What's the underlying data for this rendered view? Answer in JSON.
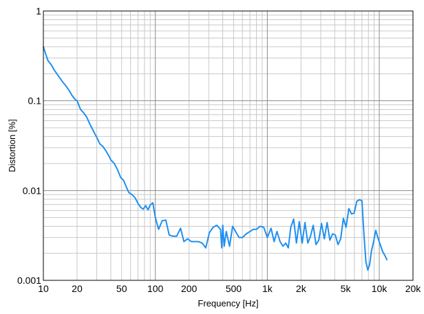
{
  "chart_data": {
    "type": "line",
    "title": "",
    "xlabel": "Frequency [Hz]",
    "ylabel": "Distortion [%]",
    "x_scale": "log",
    "y_scale": "log",
    "xlim": [
      10,
      20000
    ],
    "ylim": [
      0.001,
      1
    ],
    "x_ticks": [
      {
        "value": 10,
        "label": "10"
      },
      {
        "value": 20,
        "label": "20"
      },
      {
        "value": 50,
        "label": "50"
      },
      {
        "value": 100,
        "label": "100"
      },
      {
        "value": 200,
        "label": "200"
      },
      {
        "value": 500,
        "label": "500"
      },
      {
        "value": 1000,
        "label": "1k"
      },
      {
        "value": 2000,
        "label": "2k"
      },
      {
        "value": 5000,
        "label": "5k"
      },
      {
        "value": 10000,
        "label": "10k"
      },
      {
        "value": 20000,
        "label": "20k"
      }
    ],
    "y_ticks": [
      {
        "value": 1,
        "label": "1"
      },
      {
        "value": 0.1,
        "label": "0.1"
      },
      {
        "value": 0.01,
        "label": "0.01"
      },
      {
        "value": 0.001,
        "label": "0.001"
      }
    ],
    "grid": true,
    "legend": "none",
    "colors": {
      "line": "#1e8ff0",
      "grid": "#c8c8c8",
      "major_grid": "#8c8c8c",
      "frame": "#000000"
    },
    "series": [
      {
        "x": [
          10,
          10.5,
          11,
          11.8,
          12.5,
          13.2,
          14,
          15,
          16,
          17,
          18,
          19,
          20,
          21.5,
          23,
          24.5,
          26,
          28,
          30,
          32,
          34,
          36,
          38,
          40,
          43,
          46,
          49,
          52,
          55,
          58,
          62,
          66,
          70,
          74,
          78,
          82,
          86,
          90,
          95,
          100,
          107,
          115,
          124,
          133,
          143,
          155,
          168,
          180,
          194,
          210,
          226,
          243,
          262,
          282,
          304,
          328,
          354,
          382,
          392,
          400,
          412,
          430,
          460,
          490,
          520,
          560,
          600,
          650,
          700,
          750,
          800,
          860,
          930,
          1000,
          1080,
          1150,
          1220,
          1300,
          1380,
          1460,
          1540,
          1620,
          1720,
          1820,
          1930,
          2050,
          2170,
          2300,
          2430,
          2570,
          2720,
          2880,
          3050,
          3230,
          3420,
          3620,
          3830,
          4050,
          4280,
          4520,
          4780,
          5050,
          5350,
          5650,
          5960,
          6300,
          6650,
          7000,
          7300,
          7600,
          7900,
          8200,
          8500,
          8900,
          9300,
          9700,
          10200,
          10700,
          11200,
          11700
        ],
        "y": [
          0.4,
          0.33,
          0.28,
          0.25,
          0.22,
          0.2,
          0.18,
          0.16,
          0.145,
          0.13,
          0.115,
          0.105,
          0.1,
          0.08,
          0.073,
          0.065,
          0.055,
          0.046,
          0.039,
          0.033,
          0.031,
          0.028,
          0.025,
          0.022,
          0.02,
          0.017,
          0.014,
          0.013,
          0.011,
          0.0095,
          0.009,
          0.0083,
          0.0072,
          0.0065,
          0.0062,
          0.0068,
          0.0061,
          0.0069,
          0.0073,
          0.005,
          0.0037,
          0.0046,
          0.0047,
          0.0032,
          0.0031,
          0.0031,
          0.0038,
          0.0027,
          0.0029,
          0.0027,
          0.0027,
          0.0027,
          0.0026,
          0.0023,
          0.0034,
          0.0039,
          0.0041,
          0.0037,
          0.0023,
          0.0041,
          0.0024,
          0.0035,
          0.0024,
          0.004,
          0.0035,
          0.003,
          0.003,
          0.0033,
          0.0035,
          0.0037,
          0.0037,
          0.004,
          0.0039,
          0.003,
          0.0038,
          0.0027,
          0.0035,
          0.0027,
          0.0024,
          0.0026,
          0.0023,
          0.0039,
          0.0048,
          0.0026,
          0.0045,
          0.0026,
          0.0044,
          0.0026,
          0.0031,
          0.0041,
          0.0025,
          0.0028,
          0.0043,
          0.0029,
          0.0044,
          0.0028,
          0.0033,
          0.0032,
          0.0025,
          0.0029,
          0.0049,
          0.0039,
          0.0063,
          0.0055,
          0.0056,
          0.0076,
          0.0079,
          0.0077,
          0.0032,
          0.0016,
          0.0013,
          0.0015,
          0.0021,
          0.0027,
          0.0036,
          0.003,
          0.0025,
          0.0021,
          0.0019,
          0.0017
        ]
      }
    ]
  }
}
